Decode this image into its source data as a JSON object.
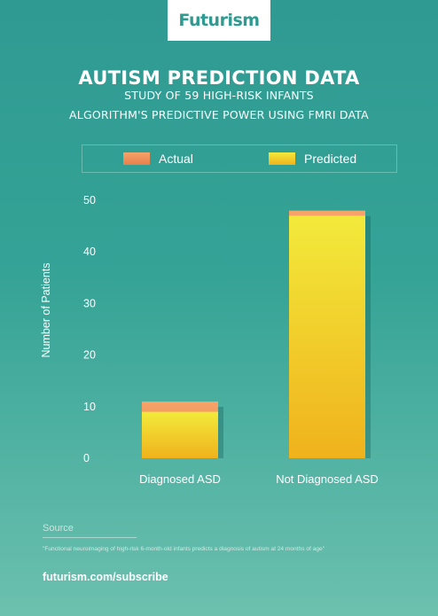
{
  "brand": {
    "logo": "Futurism"
  },
  "header": {
    "title": "AUTISM PREDICTION DATA",
    "subtitle_1": "STUDY OF 59 HIGH-RISK INFANTS",
    "subtitle_2": "ALGORITHM'S PREDICTIVE POWER USING FMRI DATA"
  },
  "chart_data": {
    "type": "bar",
    "title": "AUTISM PREDICTION DATA",
    "ylabel": "Number of Patients",
    "xlabel": "",
    "categories": [
      "Diagnosed ASD",
      "Not Diagnosed ASD"
    ],
    "series": [
      {
        "name": "Actual",
        "values": [
          11,
          48
        ]
      },
      {
        "name": "Predicted",
        "values": [
          9,
          47
        ]
      }
    ],
    "ylim": [
      0,
      50
    ],
    "yticks": [
      0,
      10,
      20,
      30,
      40,
      50
    ],
    "ytick_labels": [
      "0",
      "10",
      "20",
      "30",
      "40",
      "50"
    ],
    "grid": false,
    "legend_position": "top",
    "colors": {
      "Actual": "#ee8b55",
      "Predicted": "#f2d02a"
    }
  },
  "source": {
    "label": "Source",
    "citation": "\"Functional neuroimaging of high-risk 6-month-old infants predicts a diagnosis of autism at 24 months of age\""
  },
  "footer": {
    "link": "futurism.com/subscribe"
  }
}
